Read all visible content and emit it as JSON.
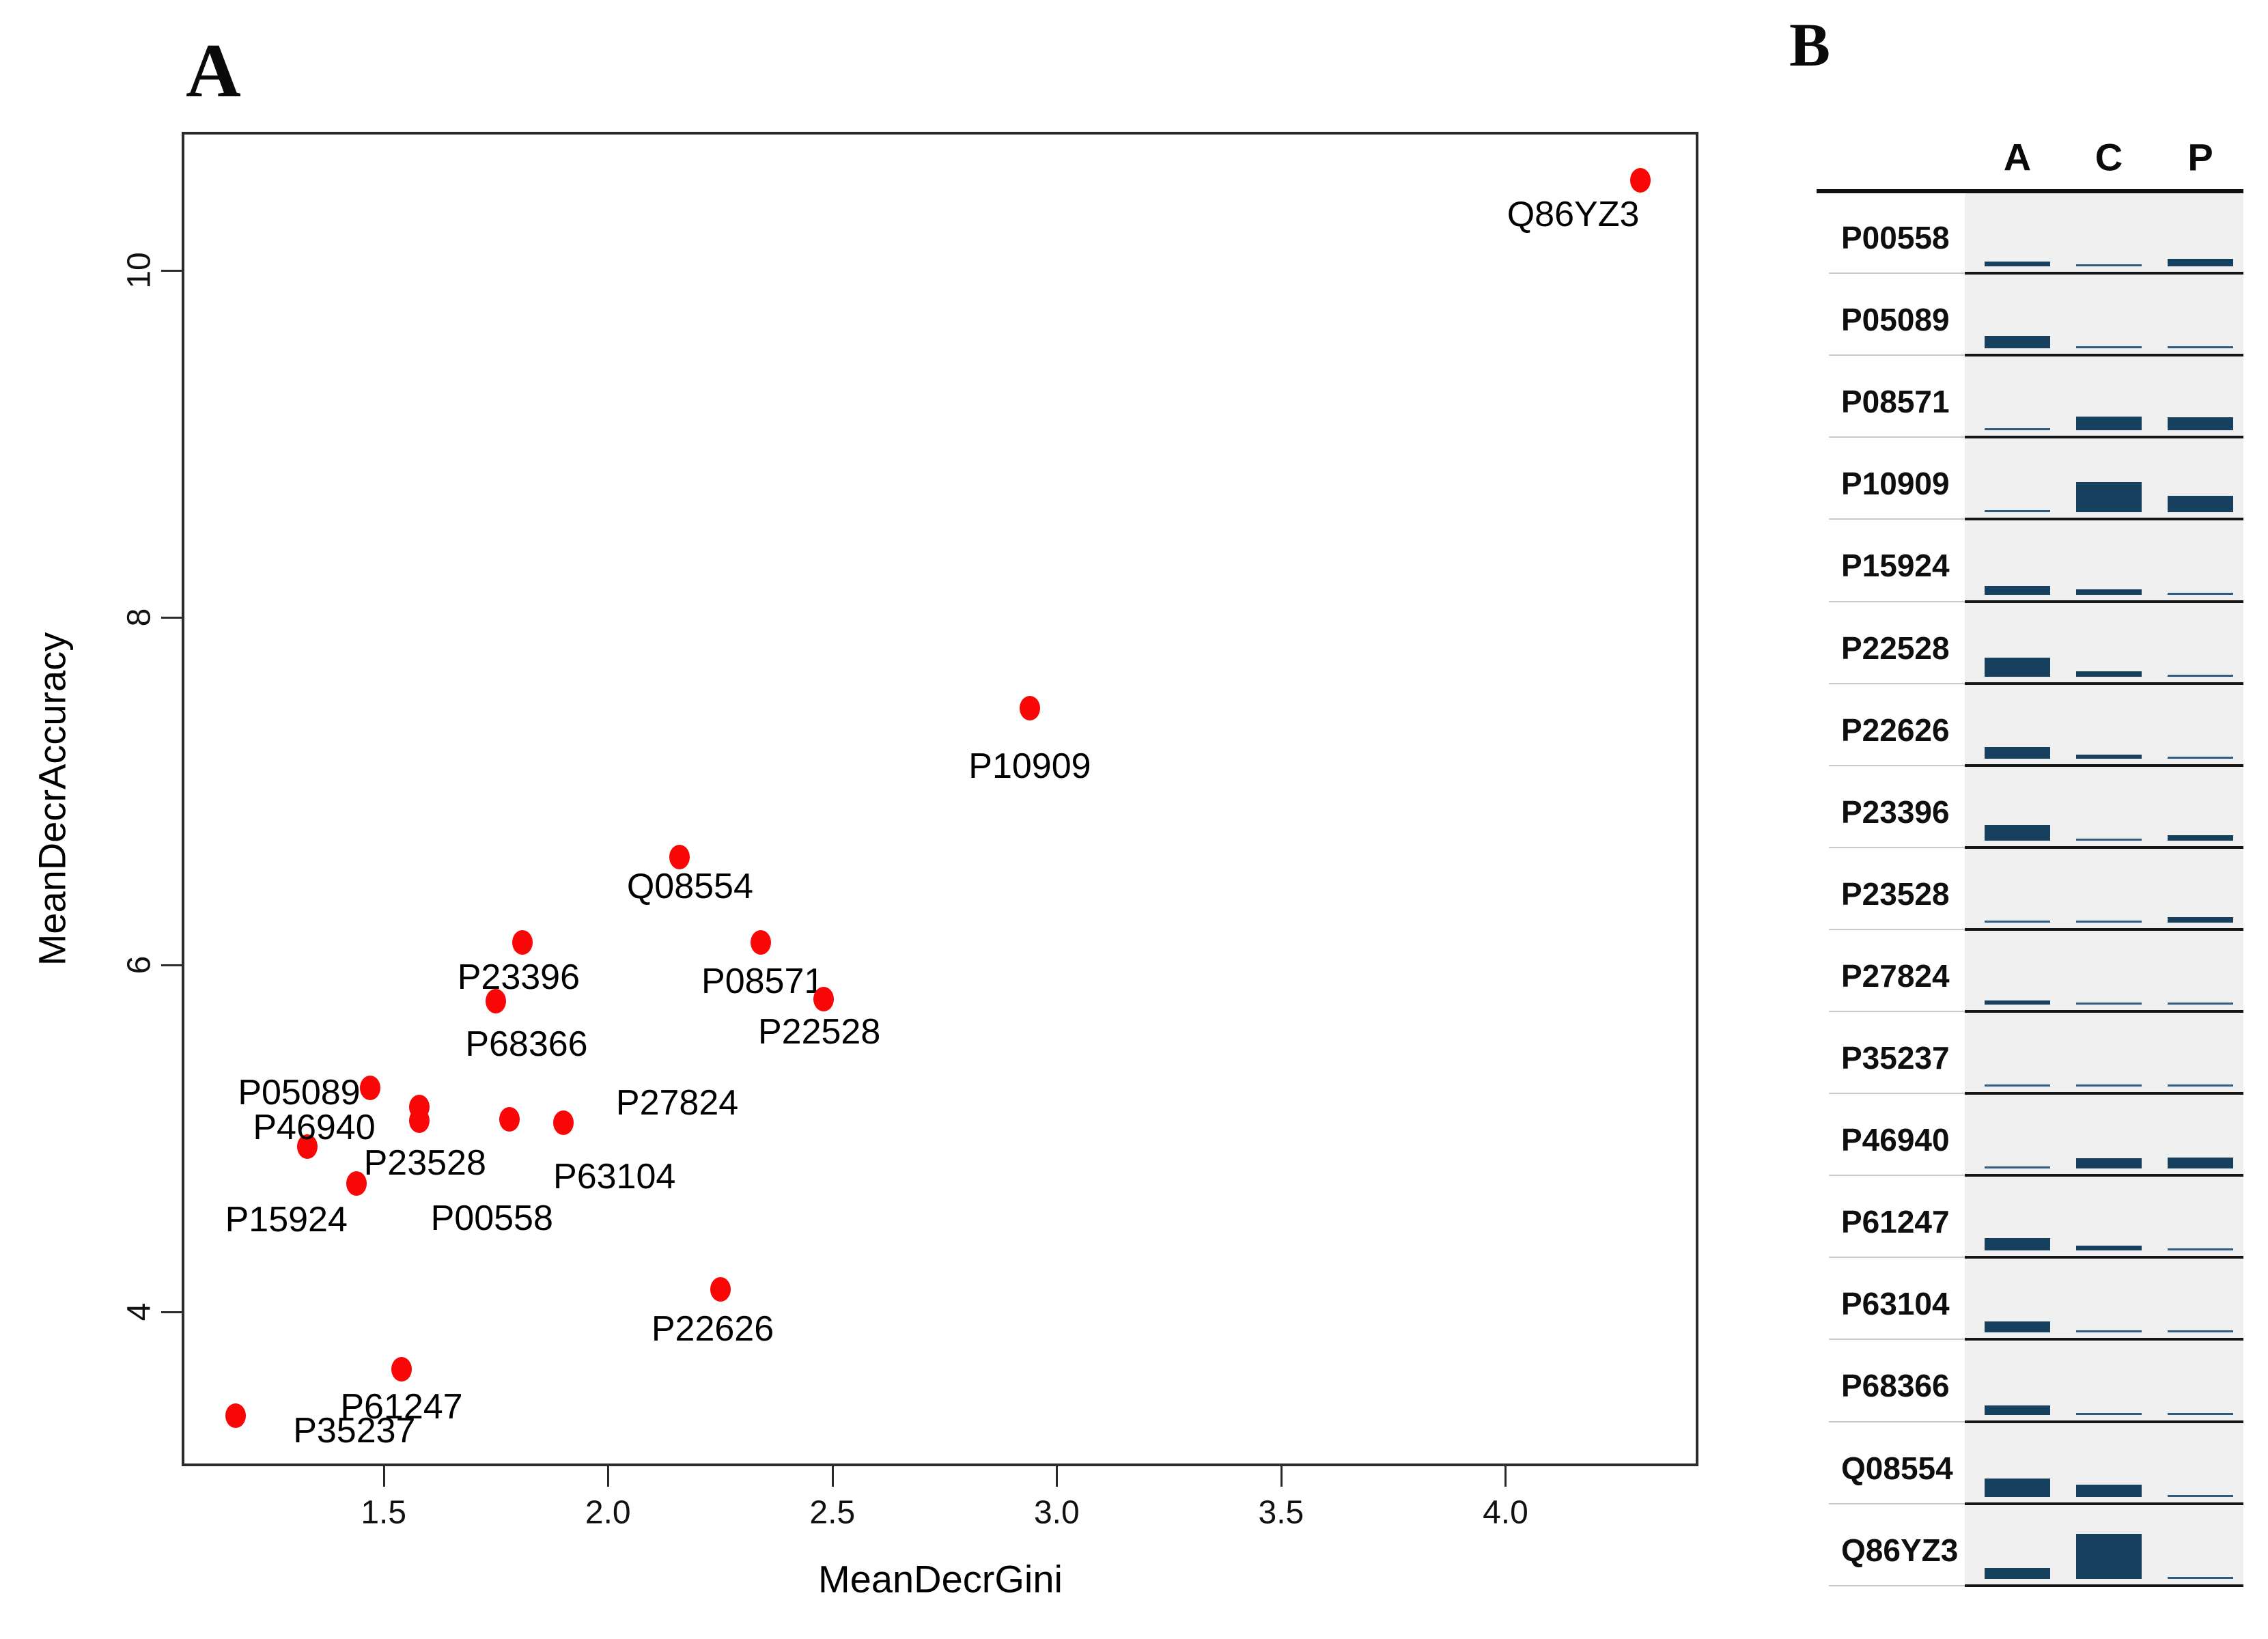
{
  "figure": {
    "panel_a_label": "A",
    "panel_b_label": "B"
  },
  "chart_data": [
    {
      "type": "scatter",
      "panel": "A",
      "xlabel": "MeanDecrGini",
      "ylabel": "MeanDecrAccuracy",
      "xlim": [
        1.05,
        4.43
      ],
      "ylim": [
        3.11,
        10.8
      ],
      "xtick_labels": [
        "1.5",
        "2.0",
        "2.5",
        "3.0",
        "3.5",
        "4.0"
      ],
      "xtick_values": [
        1.5,
        2.0,
        2.5,
        3.0,
        3.5,
        4.0
      ],
      "ytick_labels": [
        "4",
        "6",
        "8",
        "10"
      ],
      "ytick_values": [
        4,
        6,
        8,
        10
      ],
      "grid": false,
      "point_color": "#f90606",
      "points": [
        {
          "id": "P00558",
          "gini": 1.58,
          "acc": 5.18,
          "label_offset": [
            106,
            163
          ]
        },
        {
          "id": "P05089",
          "gini": 1.47,
          "acc": 5.29,
          "label_offset": [
            -104,
            7
          ]
        },
        {
          "id": "P08571",
          "gini": 2.34,
          "acc": 6.13,
          "label_offset": [
            3,
            57
          ]
        },
        {
          "id": "P10909",
          "gini": 2.94,
          "acc": 7.48,
          "label_offset": [
            0,
            85
          ]
        },
        {
          "id": "P15924",
          "gini": 1.44,
          "acc": 4.74,
          "label_offset": [
            -103,
            53
          ]
        },
        {
          "id": "P22528",
          "gini": 2.48,
          "acc": 5.8,
          "label_offset": [
            -6,
            48
          ]
        },
        {
          "id": "P22626",
          "gini": 2.25,
          "acc": 4.13,
          "label_offset": [
            -11,
            58
          ]
        },
        {
          "id": "P23396",
          "gini": 1.81,
          "acc": 6.13,
          "label_offset": [
            -6,
            51
          ]
        },
        {
          "id": "P23528",
          "gini": 1.58,
          "acc": 5.1,
          "label_offset": [
            8,
            62
          ]
        },
        {
          "id": "P27824",
          "gini": 1.9,
          "acc": 5.09,
          "label_offset": [
            167,
            -29
          ]
        },
        {
          "id": "P35237",
          "gini": 1.17,
          "acc": 3.4,
          "label_offset": [
            174,
            22
          ]
        },
        {
          "id": "P46940",
          "gini": 1.33,
          "acc": 4.95,
          "label_offset": [
            10,
            -28
          ]
        },
        {
          "id": "P61247",
          "gini": 1.54,
          "acc": 3.67,
          "label_offset": [
            0,
            55
          ]
        },
        {
          "id": "P63104",
          "gini": 1.78,
          "acc": 5.11,
          "label_offset": [
            154,
            84
          ]
        },
        {
          "id": "P68366",
          "gini": 1.75,
          "acc": 5.79,
          "label_offset": [
            45,
            63
          ]
        },
        {
          "id": "Q08554",
          "gini": 2.16,
          "acc": 6.62,
          "label_offset": [
            15,
            43
          ]
        },
        {
          "id": "Q86YZ3",
          "gini": 4.3,
          "acc": 10.52,
          "label_offset": [
            -98,
            50
          ]
        }
      ]
    },
    {
      "type": "table",
      "panel": "B",
      "columns": [
        "A",
        "C",
        "P"
      ],
      "encoding": "bar thickness in px encodes relative abundance",
      "bar_color": "#17405f",
      "rows": [
        {
          "id": "P00558",
          "A": 7,
          "C": 3,
          "P": 11
        },
        {
          "id": "P05089",
          "A": 18,
          "C": 3,
          "P": 2
        },
        {
          "id": "P08571",
          "A": 3,
          "C": 20,
          "P": 19
        },
        {
          "id": "P10909",
          "A": 3,
          "C": 44,
          "P": 24
        },
        {
          "id": "P15924",
          "A": 13,
          "C": 8,
          "P": 2
        },
        {
          "id": "P22528",
          "A": 28,
          "C": 8,
          "P": 2
        },
        {
          "id": "P22626",
          "A": 17,
          "C": 6,
          "P": 2
        },
        {
          "id": "P23396",
          "A": 23,
          "C": 2,
          "P": 8
        },
        {
          "id": "P23528",
          "A": 3,
          "C": 3,
          "P": 8
        },
        {
          "id": "P27824",
          "A": 6,
          "C": 2,
          "P": 2
        },
        {
          "id": "P35237",
          "A": 2,
          "C": 2,
          "P": 2
        },
        {
          "id": "P46940",
          "A": 2,
          "C": 15,
          "P": 16
        },
        {
          "id": "P61247",
          "A": 18,
          "C": 7,
          "P": 2
        },
        {
          "id": "P63104",
          "A": 16,
          "C": 2,
          "P": 2
        },
        {
          "id": "P68366",
          "A": 14,
          "C": 2,
          "P": 2
        },
        {
          "id": "Q08554",
          "A": 27,
          "C": 18,
          "P": 3
        },
        {
          "id": "Q86YZ3",
          "A": 16,
          "C": 66,
          "P": 3
        }
      ]
    }
  ]
}
